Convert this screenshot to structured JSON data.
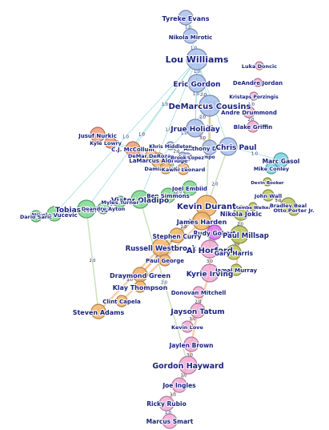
{
  "palette": {
    "blue": "#a9bfee",
    "orange": "#f4b56b",
    "green": "#7cd88e",
    "pink": "#f3a9d6",
    "olive": "#b8c45a",
    "cyan": "#74d3e3",
    "salmon": "#f29a7b",
    "violet": "#e06ff0",
    "label": "#1a237e"
  },
  "nodes": [
    {
      "id": "tyreke",
      "label": "Tyreke Evans",
      "color": "blue",
      "size": "m"
    },
    {
      "id": "mirotic",
      "label": "Nikola Mirotic",
      "color": "blue",
      "size": "m"
    },
    {
      "id": "louw",
      "label": "Lou Williams",
      "color": "blue",
      "size": "xl"
    },
    {
      "id": "doncic",
      "label": "Luka Doncic",
      "color": "pink",
      "size": "xs"
    },
    {
      "id": "jordan",
      "label": "DeAndre Jordan",
      "color": "pink",
      "size": "xs"
    },
    {
      "id": "gordon",
      "label": "Eric Gordon",
      "color": "blue",
      "size": "l"
    },
    {
      "id": "porzingis",
      "label": "Kristaps Porzingis",
      "color": "pink",
      "size": "xs"
    },
    {
      "id": "cousins",
      "label": "DeMarcus Cousins",
      "color": "blue",
      "size": "xl"
    },
    {
      "id": "drummond",
      "label": "Andre Drummond",
      "color": "pink",
      "size": "s"
    },
    {
      "id": "griffin",
      "label": "Blake Griffin",
      "color": "pink",
      "size": "s"
    },
    {
      "id": "holiday",
      "label": "Jrue Holiday",
      "color": "blue",
      "size": "l"
    },
    {
      "id": "davis",
      "label": "Anthony Davis",
      "color": "blue",
      "size": "m"
    },
    {
      "id": "cpaul",
      "label": "Chris Paul",
      "color": "blue",
      "size": "l"
    },
    {
      "id": "antetokounmpo",
      "label": "Giannis Antetokounmpo",
      "color": "blue",
      "size": "xs"
    },
    {
      "id": "nurkic",
      "label": "Jusuf Nurkic",
      "color": "salmon",
      "size": "m"
    },
    {
      "id": "lowry",
      "label": "Kyle Lowry",
      "color": "salmon",
      "size": "s"
    },
    {
      "id": "mccollum",
      "label": "C.J. McCollum",
      "color": "salmon",
      "size": "m"
    },
    {
      "id": "derozan",
      "label": "DeMar DeRozan",
      "color": "orange",
      "size": "s"
    },
    {
      "id": "aldridge",
      "label": "LaMarcus Aldridge",
      "color": "orange",
      "size": "m"
    },
    {
      "id": "middleton",
      "label": "Khris Middleton",
      "color": "blue",
      "size": "xs"
    },
    {
      "id": "lillard",
      "label": "Damian Lillard",
      "color": "orange",
      "size": "s"
    },
    {
      "id": "leonard",
      "label": "Kawhi Leonard",
      "color": "orange",
      "size": "s"
    },
    {
      "id": "lopez",
      "label": "Brook Lopez",
      "color": "blue",
      "size": "xs"
    },
    {
      "id": "gasol",
      "label": "Marc Gasol",
      "color": "cyan",
      "size": "m"
    },
    {
      "id": "conley",
      "label": "Mike Conley",
      "color": "cyan",
      "size": "s"
    },
    {
      "id": "embiid",
      "label": "Joel Embiid",
      "color": "green",
      "size": "m"
    },
    {
      "id": "simmons",
      "label": "Ben Simmons",
      "color": "green",
      "size": "m"
    },
    {
      "id": "booker",
      "label": "Devin Booker",
      "color": "olive",
      "size": "xs"
    },
    {
      "id": "oladipo",
      "label": "Victor Oladipo",
      "color": "green",
      "size": "l"
    },
    {
      "id": "wall",
      "label": "John Wall",
      "color": "olive",
      "size": "s"
    },
    {
      "id": "walker",
      "label": "Kemba Walker",
      "color": "olive",
      "size": "xs"
    },
    {
      "id": "beal",
      "label": "Bradley Beal",
      "color": "olive",
      "size": "m"
    },
    {
      "id": "aporter",
      "label": "Otto Porter Jr.",
      "color": "olive",
      "size": "s"
    },
    {
      "id": "turner",
      "label": "Myles Turner",
      "color": "green",
      "size": "s"
    },
    {
      "id": "harris",
      "label": "Tobias Harris",
      "color": "green",
      "size": "l"
    },
    {
      "id": "ayton",
      "label": "Deandre Ayton",
      "color": "green",
      "size": "s"
    },
    {
      "id": "vucevic",
      "label": "Nikola Vucevic",
      "color": "green",
      "size": "m"
    },
    {
      "id": "saric",
      "label": "Dario Saric",
      "color": "green",
      "size": "s"
    },
    {
      "id": "durant",
      "label": "Kevin Durant",
      "color": "orange",
      "size": "xl"
    },
    {
      "id": "jokic",
      "label": "Nikola Jokic",
      "color": "olive",
      "size": "m"
    },
    {
      "id": "harden",
      "label": "James Harden",
      "color": "orange",
      "size": "l"
    },
    {
      "id": "gobert",
      "label": "Rudy Gobert",
      "color": "violet",
      "size": "m"
    },
    {
      "id": "millsap",
      "label": "Paul Millsap",
      "color": "olive",
      "size": "l"
    },
    {
      "id": "curry",
      "label": "Stephen Curry",
      "color": "orange",
      "size": "m"
    },
    {
      "id": "westbrook",
      "label": "Russell Westbrook",
      "color": "orange",
      "size": "l"
    },
    {
      "id": "horford",
      "label": "Al Horford",
      "color": "pink",
      "size": "l"
    },
    {
      "id": "gharris",
      "label": "Gary Harris",
      "color": "olive",
      "size": "m"
    },
    {
      "id": "george",
      "label": "Paul George",
      "color": "orange",
      "size": "s"
    },
    {
      "id": "murray",
      "label": "Jamal Murray",
      "color": "olive",
      "size": "s"
    },
    {
      "id": "irving",
      "label": "Kyrie Irving",
      "color": "pink",
      "size": "l"
    },
    {
      "id": "green",
      "label": "Draymond Green",
      "color": "orange",
      "size": "m"
    },
    {
      "id": "thompson",
      "label": "Klay Thompson",
      "color": "orange",
      "size": "s"
    },
    {
      "id": "mitchell",
      "label": "Donovan Mitchell",
      "color": "pink",
      "size": "s"
    },
    {
      "id": "capela",
      "label": "Clint Capela",
      "color": "orange",
      "size": "s"
    },
    {
      "id": "tatum",
      "label": "Jayson Tatum",
      "color": "pink",
      "size": "m"
    },
    {
      "id": "adams",
      "label": "Steven Adams",
      "color": "orange",
      "size": "m"
    },
    {
      "id": "love",
      "label": "Kevin Love",
      "color": "pink",
      "size": "s"
    },
    {
      "id": "brown",
      "label": "Jaylen Brown",
      "color": "pink",
      "size": "m"
    },
    {
      "id": "hayward",
      "label": "Gordon Hayward",
      "color": "pink",
      "size": "l"
    },
    {
      "id": "ingles",
      "label": "Joe Ingles",
      "color": "pink",
      "size": "m"
    },
    {
      "id": "rubio",
      "label": "Ricky Rubio",
      "color": "pink",
      "size": "m"
    },
    {
      "id": "smart",
      "label": "Marcus Smart",
      "color": "pink",
      "size": "m"
    }
  ],
  "edges": [
    {
      "s": "tyreke",
      "t": "mirotic",
      "w": "1.0"
    },
    {
      "s": "mirotic",
      "t": "louw",
      "w": "1.0"
    },
    {
      "s": "louw",
      "t": "gordon",
      "w": "1.0"
    },
    {
      "s": "louw",
      "t": "cousins",
      "w": "1.0"
    },
    {
      "s": "louw",
      "t": "holiday",
      "w": "1.0"
    },
    {
      "s": "louw",
      "t": "cpaul",
      "w": "1.0"
    },
    {
      "s": "louw",
      "t": "mccollum",
      "w": "1.0"
    },
    {
      "s": "louw",
      "t": "harris",
      "w": "1.0"
    },
    {
      "s": "louw",
      "t": "oladipo",
      "w": "1.0"
    },
    {
      "s": "louw",
      "t": "vucevic",
      "w": "1.0"
    },
    {
      "s": "gordon",
      "t": "cousins",
      "w": "2.0"
    },
    {
      "s": "gordon",
      "t": "holiday",
      "w": "1.0"
    },
    {
      "s": "cousins",
      "t": "davis",
      "w": "3.0"
    },
    {
      "s": "cousins",
      "t": "holiday",
      "w": "2.0"
    },
    {
      "s": "cousins",
      "t": "aldridge",
      "w": "1.0"
    },
    {
      "s": "cousins",
      "t": "durant",
      "w": "2.0"
    },
    {
      "s": "drummond",
      "t": "griffin",
      "w": "2.0"
    },
    {
      "s": "porzingis",
      "t": "drummond",
      "w": "1.0"
    },
    {
      "s": "holiday",
      "t": "davis",
      "w": "3.0"
    },
    {
      "s": "davis",
      "t": "cpaul",
      "w": "2.0"
    },
    {
      "s": "cpaul",
      "t": "gasol",
      "w": "1.0"
    },
    {
      "s": "cpaul",
      "t": "harden",
      "w": "2.0"
    },
    {
      "s": "nurkic",
      "t": "mccollum",
      "w": "1.0"
    },
    {
      "s": "nurkic",
      "t": "lillard",
      "w": "1.0"
    },
    {
      "s": "lowry",
      "t": "derozan",
      "w": "1.0"
    },
    {
      "s": "mccollum",
      "t": "lillard",
      "w": "3.0"
    },
    {
      "s": "derozan",
      "t": "aldridge",
      "w": "2.0"
    },
    {
      "s": "aldridge",
      "t": "leonard",
      "w": "2.0"
    },
    {
      "s": "middleton",
      "t": "antetokounmpo",
      "w": "2.0"
    },
    {
      "s": "lopez",
      "t": "antetokounmpo",
      "w": "1.0"
    },
    {
      "s": "gasol",
      "t": "conley",
      "w": "2.0"
    },
    {
      "s": "embiid",
      "t": "simmons",
      "w": "2.0"
    },
    {
      "s": "oladipo",
      "t": "turner",
      "w": "1.0"
    },
    {
      "s": "oladipo",
      "t": "harris",
      "w": "1.0"
    },
    {
      "s": "harris",
      "t": "ayton",
      "w": "1.0"
    },
    {
      "s": "harris",
      "t": "vucevic",
      "w": "1.0"
    },
    {
      "s": "harris",
      "t": "saric",
      "w": "1.0"
    },
    {
      "s": "harris",
      "t": "adams",
      "w": "2.0"
    },
    {
      "s": "wall",
      "t": "beal",
      "w": "3.0"
    },
    {
      "s": "beal",
      "t": "aporter",
      "w": "2.0"
    },
    {
      "s": "durant",
      "t": "curry",
      "w": "3.0"
    },
    {
      "s": "durant",
      "t": "harden",
      "w": "2.0"
    },
    {
      "s": "durant",
      "t": "westbrook",
      "w": "2.0"
    },
    {
      "s": "durant",
      "t": "green",
      "w": "3.0"
    },
    {
      "s": "durant",
      "t": "horford",
      "w": "2.0"
    },
    {
      "s": "jokic",
      "t": "millsap",
      "w": "2.0"
    },
    {
      "s": "jokic",
      "t": "gharris",
      "w": "2.0"
    },
    {
      "s": "millsap",
      "t": "gharris",
      "w": "3.0"
    },
    {
      "s": "millsap",
      "t": "murray",
      "w": "3.0"
    },
    {
      "s": "gobert",
      "t": "horford",
      "w": "2.0"
    },
    {
      "s": "horford",
      "t": "irving",
      "w": "3.0"
    },
    {
      "s": "westbrook",
      "t": "george",
      "w": "2.0"
    },
    {
      "s": "westbrook",
      "t": "adams",
      "w": "3.0"
    },
    {
      "s": "curry",
      "t": "green",
      "w": "3.0"
    },
    {
      "s": "green",
      "t": "thompson",
      "w": "3.0"
    },
    {
      "s": "irving",
      "t": "tatum",
      "w": "3.0"
    },
    {
      "s": "mitchell",
      "t": "tatum",
      "w": "2.0"
    },
    {
      "s": "tatum",
      "t": "love",
      "w": "3.0"
    },
    {
      "s": "tatum",
      "t": "brown",
      "w": "3.0"
    },
    {
      "s": "brown",
      "t": "hayward",
      "w": "3.0"
    },
    {
      "s": "hayward",
      "t": "ingles",
      "w": "3.0"
    },
    {
      "s": "ingles",
      "t": "rubio",
      "w": "3.0"
    },
    {
      "s": "rubio",
      "t": "smart",
      "w": "1.0"
    },
    {
      "s": "hayward",
      "t": "oladipo",
      "w": "2.0"
    },
    {
      "s": "harden",
      "t": "capela",
      "w": "3.0"
    }
  ]
}
